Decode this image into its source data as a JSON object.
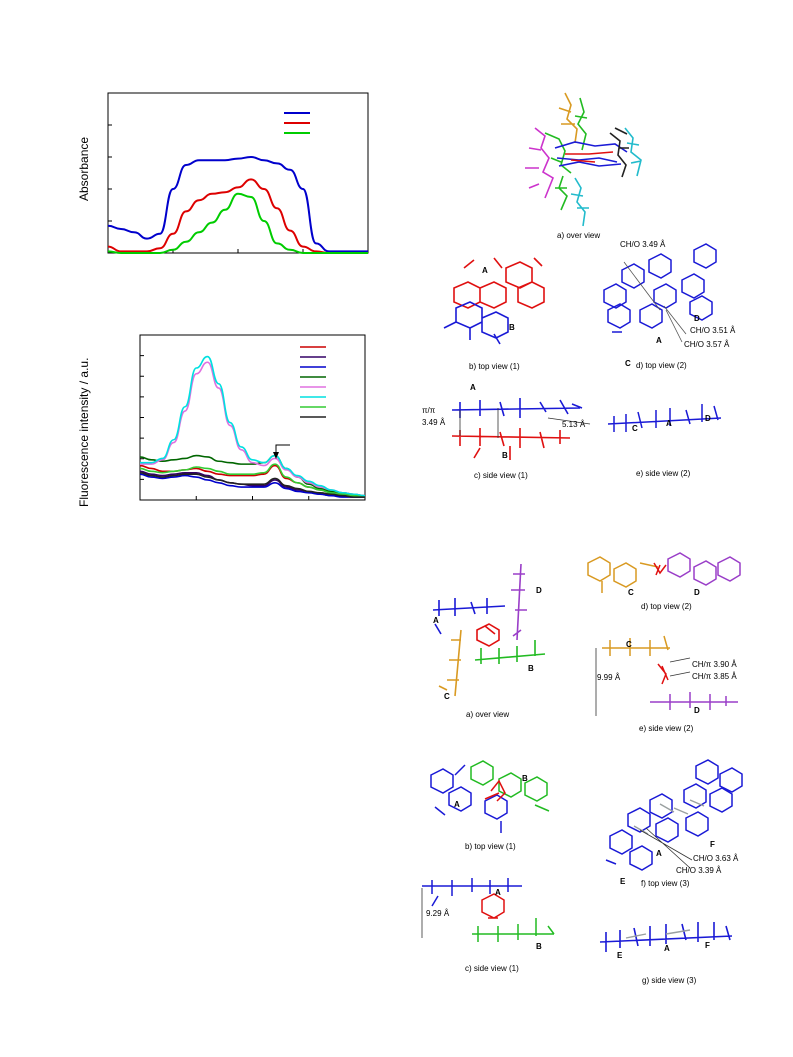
{
  "chart_data": [
    {
      "type": "line",
      "ylabel": "Absorbance",
      "xlabel": "",
      "title": "",
      "legend": "top-right",
      "x": [
        0,
        5,
        10,
        15,
        20,
        25,
        30,
        35,
        40,
        45,
        50,
        55,
        60,
        65,
        70,
        75,
        80,
        85,
        90,
        95,
        100
      ],
      "series": [
        {
          "color": "#0000cc",
          "values": [
            0.17,
            0.15,
            0.13,
            0.09,
            0.12,
            0.4,
            0.55,
            0.58,
            0.58,
            0.58,
            0.59,
            0.6,
            0.58,
            0.56,
            0.52,
            0.4,
            0.06,
            0.01,
            0.01,
            0.01,
            0.01
          ]
        },
        {
          "color": "#dd0000",
          "values": [
            0.04,
            0.01,
            0.01,
            0.01,
            0.03,
            0.12,
            0.26,
            0.33,
            0.37,
            0.38,
            0.41,
            0.46,
            0.4,
            0.28,
            0.14,
            0.04,
            0.01,
            0.0,
            0.0,
            0.0,
            0.0
          ]
        },
        {
          "color": "#00cc00",
          "values": [
            0.01,
            0.0,
            0.0,
            0.0,
            0.0,
            0.02,
            0.07,
            0.13,
            0.19,
            0.27,
            0.37,
            0.35,
            0.2,
            0.06,
            0.02,
            0.0,
            0.0,
            0.0,
            0.0,
            0.0,
            0.0
          ]
        }
      ],
      "ylim": [
        0,
        1
      ]
    },
    {
      "type": "line",
      "ylabel": "Fluorescence intensity / a.u.",
      "xlabel": "",
      "title": "",
      "legend": "top-right",
      "x": [
        0,
        5,
        10,
        15,
        20,
        25,
        30,
        35,
        40,
        45,
        50,
        55,
        60,
        65,
        70,
        75,
        80,
        85,
        90,
        95,
        100
      ],
      "series": [
        {
          "color": "#cc0000",
          "values": [
            0.24,
            0.22,
            0.2,
            0.2,
            0.21,
            0.22,
            0.2,
            0.18,
            0.17,
            0.17,
            0.17,
            0.18,
            0.24,
            0.15,
            0.12,
            0.09,
            0.07,
            0.05,
            0.04,
            0.03,
            0.02
          ]
        },
        {
          "color": "#330066",
          "values": [
            0.2,
            0.18,
            0.17,
            0.18,
            0.19,
            0.19,
            0.17,
            0.14,
            0.12,
            0.11,
            0.1,
            0.1,
            0.14,
            0.09,
            0.07,
            0.06,
            0.04,
            0.03,
            0.03,
            0.02,
            0.02
          ]
        },
        {
          "color": "#0000cc",
          "values": [
            0.18,
            0.16,
            0.15,
            0.16,
            0.17,
            0.16,
            0.14,
            0.12,
            0.1,
            0.09,
            0.09,
            0.09,
            0.12,
            0.08,
            0.06,
            0.05,
            0.04,
            0.03,
            0.02,
            0.02,
            0.02
          ]
        },
        {
          "color": "#006600",
          "values": [
            0.3,
            0.28,
            0.27,
            0.28,
            0.29,
            0.31,
            0.3,
            0.27,
            0.26,
            0.25,
            0.25,
            0.26,
            0.31,
            0.22,
            0.16,
            0.11,
            0.08,
            0.06,
            0.05,
            0.04,
            0.03
          ]
        },
        {
          "color": "#e070e0",
          "values": [
            0.25,
            0.25,
            0.28,
            0.4,
            0.62,
            0.88,
            0.96,
            0.78,
            0.52,
            0.35,
            0.26,
            0.24,
            0.29,
            0.21,
            0.16,
            0.12,
            0.09,
            0.07,
            0.05,
            0.04,
            0.03
          ]
        },
        {
          "color": "#00e0e0",
          "values": [
            0.26,
            0.26,
            0.29,
            0.42,
            0.65,
            0.92,
            1.0,
            0.81,
            0.54,
            0.37,
            0.28,
            0.26,
            0.31,
            0.22,
            0.17,
            0.13,
            0.1,
            0.07,
            0.05,
            0.04,
            0.03
          ]
        },
        {
          "color": "#33cc33",
          "values": [
            0.22,
            0.2,
            0.19,
            0.2,
            0.21,
            0.23,
            0.22,
            0.2,
            0.18,
            0.18,
            0.18,
            0.19,
            0.25,
            0.16,
            0.12,
            0.09,
            0.07,
            0.05,
            0.04,
            0.03,
            0.02
          ]
        },
        {
          "color": "#222222",
          "values": [
            0.19,
            0.17,
            0.16,
            0.17,
            0.18,
            0.18,
            0.16,
            0.14,
            0.12,
            0.11,
            0.11,
            0.11,
            0.15,
            0.1,
            0.08,
            0.06,
            0.05,
            0.04,
            0.03,
            0.02,
            0.02
          ]
        }
      ],
      "ylim": [
        0,
        1.15
      ]
    }
  ],
  "figures": {
    "fig1": {
      "captions": {
        "a": "a) over view",
        "b": "b) top view (1)",
        "c": "c) side view (1)",
        "d": "d) top view (2)",
        "e": "e) side view (2)"
      },
      "labels": {
        "A": "A",
        "B": "B",
        "C": "C",
        "D": "D"
      },
      "measurements": {
        "pipi_a": "π/π",
        "pipi_b": "3.49",
        "unit": "Å",
        "d513": "5.13",
        "cho349": "CH/O 3.49",
        "cho351": "CH/O 3.51",
        "cho357": "CH/O 3.57"
      }
    },
    "fig2": {
      "captions": {
        "a": "a) over view",
        "b": "b) top view (1)",
        "c": "c) side view (1)",
        "d": "d) top view (2)",
        "e": "e) side view (2)",
        "f": "f) top view (3)",
        "g": "g) side view (3)"
      },
      "labels": {
        "A": "A",
        "B": "B",
        "C": "C",
        "D": "D",
        "E": "E",
        "F": "F"
      },
      "measurements": {
        "d999": "9.99",
        "d929": "9.29",
        "unit": "Å",
        "chpi390": "CH/π 3.90",
        "chpi385": "CH/π 3.85",
        "cho363": "CH/O 3.63",
        "cho339": "CH/O 3.39"
      }
    }
  },
  "colors": {
    "blue": "#1a1ad6",
    "red": "#e01010",
    "green": "#22bb22",
    "orange": "#d99a22",
    "purple": "#9a3ec8",
    "magenta": "#cc33cc",
    "cyan": "#22bbcc",
    "black": "#222222",
    "gray": "#9aa0a0"
  }
}
